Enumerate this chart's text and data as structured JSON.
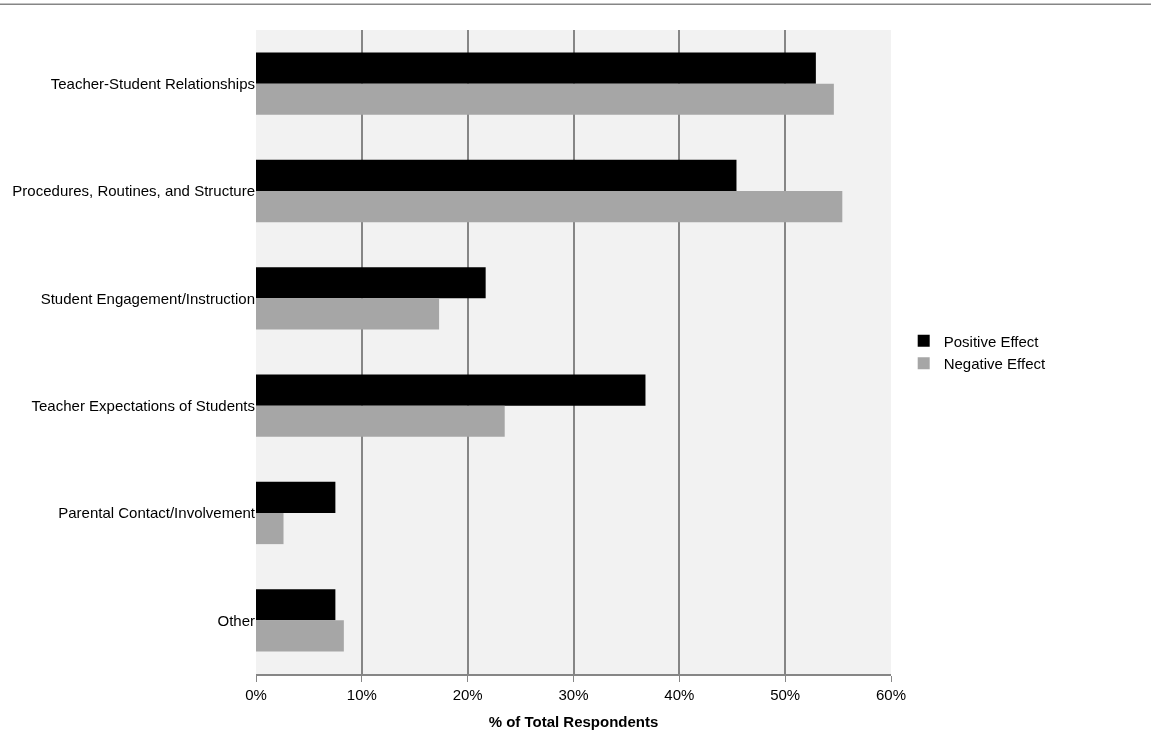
{
  "chart_data": {
    "type": "bar",
    "orientation": "horizontal",
    "xlabel": "% of Total Respondents",
    "categories": [
      "Teacher-Student Relationships",
      "Procedures, Routines, and Structure",
      "Student Engagement/Instruction",
      "Teacher Expectations of Students",
      "Parental Contact/Involvement",
      "Other"
    ],
    "series": [
      {
        "name": "Positive Effect",
        "color": "#000000",
        "values": [
          52.9,
          45.4,
          21.7,
          36.8,
          7.5,
          7.5
        ]
      },
      {
        "name": "Negative Effect",
        "color": "#a6a6a6",
        "values": [
          54.6,
          55.4,
          17.3,
          23.5,
          2.6,
          8.3
        ]
      }
    ],
    "xlim": [
      0,
      60
    ],
    "xticks": [
      {
        "value": 0,
        "label": "0%"
      },
      {
        "value": 10,
        "label": "10%"
      },
      {
        "value": 20,
        "label": "20%"
      },
      {
        "value": 30,
        "label": "30%"
      },
      {
        "value": 40,
        "label": "40%"
      },
      {
        "value": 50,
        "label": "50%"
      },
      {
        "value": 60,
        "label": "60%"
      }
    ],
    "grid": "x",
    "legend": "right"
  }
}
